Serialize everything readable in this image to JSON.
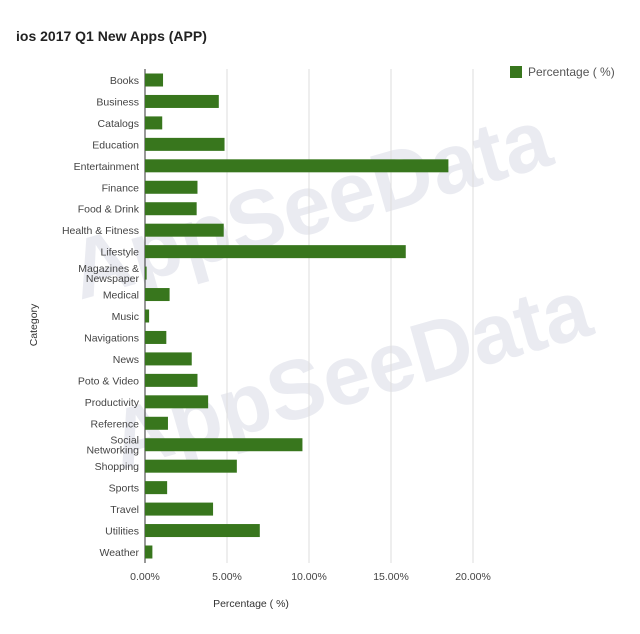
{
  "chart_data": {
    "type": "bar",
    "orientation": "horizontal",
    "title": "ios 2017 Q1 New Apps (APP)",
    "xlabel": "Percentage ( %)",
    "ylabel": "Category",
    "xlim": [
      0,
      20
    ],
    "xticks": [
      "0.00%",
      "5.00%",
      "10.00%",
      "15.00%",
      "20.00%"
    ],
    "grid": true,
    "legend_position": "top-right",
    "watermark": "AppSeeData",
    "bar_color": "#38761d",
    "categories": [
      [
        "Books"
      ],
      [
        "Business"
      ],
      [
        "Catalogs"
      ],
      [
        "Education"
      ],
      [
        "Entertainment"
      ],
      [
        "Finance"
      ],
      [
        "Food & Drink"
      ],
      [
        "Health & Fitness"
      ],
      [
        "Lifestyle"
      ],
      [
        "Magazines &",
        "Newspaper"
      ],
      [
        "Medical"
      ],
      [
        "Music"
      ],
      [
        "Navigations"
      ],
      [
        "News"
      ],
      [
        "Poto & Video"
      ],
      [
        "Productivity"
      ],
      [
        "Reference"
      ],
      [
        "Social",
        "Networking"
      ],
      [
        "Shopping"
      ],
      [
        "Sports"
      ],
      [
        "Travel"
      ],
      [
        "Utilities"
      ],
      [
        "Weather"
      ]
    ],
    "series": [
      {
        "name": "Percentage ( %)",
        "values": [
          1.1,
          4.5,
          1.05,
          4.85,
          18.5,
          3.2,
          3.15,
          4.8,
          15.9,
          0.1,
          1.5,
          0.25,
          1.3,
          2.85,
          3.2,
          3.85,
          1.4,
          9.6,
          5.6,
          1.35,
          4.15,
          7.0,
          0.45
        ]
      }
    ]
  }
}
